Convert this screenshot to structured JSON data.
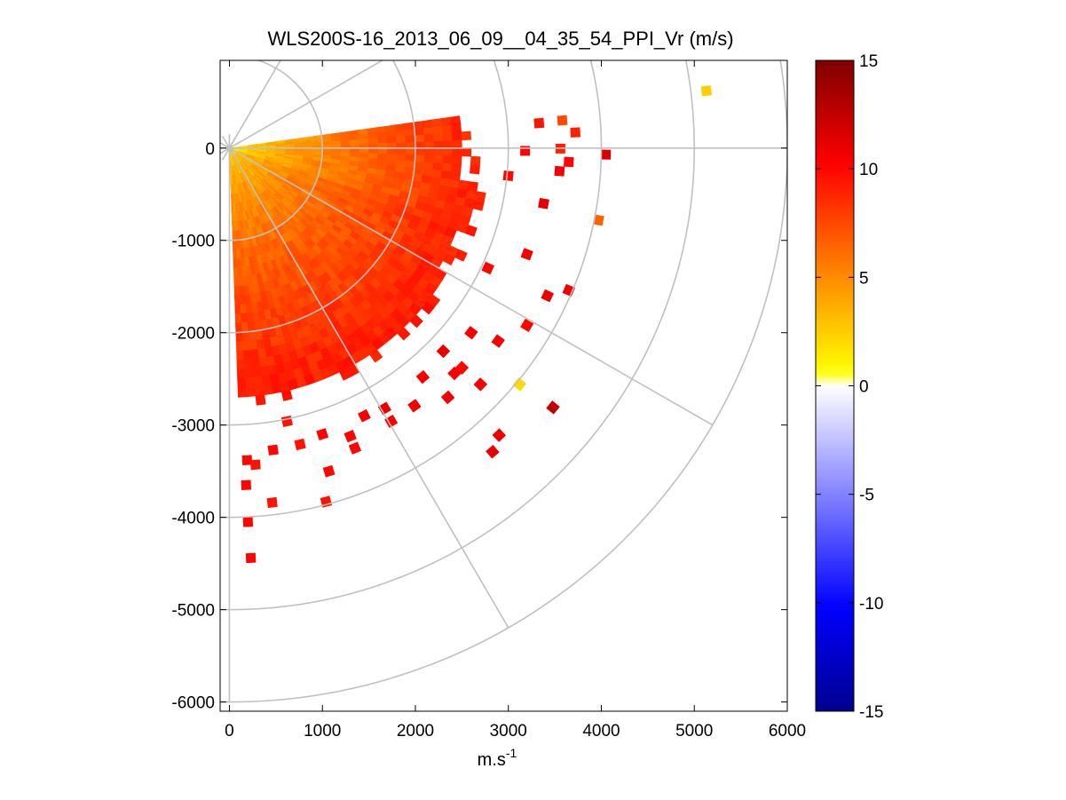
{
  "chart_data": {
    "type": "heatmap",
    "subtype": "polar-ppi-scan",
    "title": "WLS200S-16_2013_06_09__04_35_54_PPI_Vr (m/s)",
    "xlabel_base": "m.s",
    "xlabel_exponent": "-1",
    "ylabel": "",
    "xlim": [
      -100,
      6000
    ],
    "ylim": [
      -6100,
      950
    ],
    "x_ticks": [
      0,
      1000,
      2000,
      3000,
      4000,
      5000,
      6000
    ],
    "x_tick_labels": [
      "0",
      "1000",
      "2000",
      "3000",
      "4000",
      "5000",
      "6000"
    ],
    "y_ticks": [
      0,
      -1000,
      -2000,
      -3000,
      -4000,
      -5000,
      -6000
    ],
    "y_tick_labels": [
      "0",
      "-1000",
      "-2000",
      "-3000",
      "-4000",
      "-5000",
      "-6000"
    ],
    "range_rings": [
      1000,
      2000,
      3000,
      4000,
      5000,
      6000
    ],
    "radial_lines_deg": [
      0,
      -30,
      -60,
      -90,
      30,
      60
    ],
    "colorbar": {
      "range": [
        -15,
        15
      ],
      "ticks": [
        15,
        10,
        5,
        0,
        -5,
        -10,
        -15
      ],
      "tick_labels": [
        "15",
        "10",
        "5",
        "0",
        "-5",
        "-10",
        "-15"
      ],
      "colors": [
        "#00008f",
        "#0000ff",
        "#8080ff",
        "#ffffff",
        "#ffff00",
        "#ff8000",
        "#ff0000",
        "#800000"
      ]
    },
    "scan": {
      "azimuth_start_deg": -88,
      "azimuth_end_deg": 8,
      "range_gate_m": 100,
      "max_range_m": 2900,
      "near_value": 1.5,
      "far_value": 9.5
    },
    "scatter_points": [
      {
        "x": 5130,
        "y": 620,
        "v": 2.5
      },
      {
        "x": 4050,
        "y": -70,
        "v": 11.5
      },
      {
        "x": 3970,
        "y": -780,
        "v": 6.5
      },
      {
        "x": 3420,
        "y": -1600,
        "v": 11.0
      },
      {
        "x": 3650,
        "y": -1540,
        "v": 10.5
      },
      {
        "x": 3200,
        "y": -1920,
        "v": 10.0
      },
      {
        "x": 2890,
        "y": -2090,
        "v": 10.5
      },
      {
        "x": 3120,
        "y": -2560,
        "v": 2.0
      },
      {
        "x": 3480,
        "y": -2810,
        "v": 12.5
      },
      {
        "x": 2900,
        "y": -3110,
        "v": 11.0
      },
      {
        "x": 2830,
        "y": -3290,
        "v": 11.0
      },
      {
        "x": 2600,
        "y": -2000,
        "v": 10.5
      },
      {
        "x": 2420,
        "y": -2440,
        "v": 10.5
      },
      {
        "x": 2700,
        "y": -2560,
        "v": 10.5
      },
      {
        "x": 2350,
        "y": -2700,
        "v": 10.5
      },
      {
        "x": 1990,
        "y": -2790,
        "v": 10.5
      },
      {
        "x": 1740,
        "y": -2960,
        "v": 10.5
      },
      {
        "x": 1450,
        "y": -2900,
        "v": 10.5
      },
      {
        "x": 1300,
        "y": -3120,
        "v": 10.0
      },
      {
        "x": 1000,
        "y": -3100,
        "v": 10.0
      },
      {
        "x": 760,
        "y": -3210,
        "v": 9.5
      },
      {
        "x": 470,
        "y": -3270,
        "v": 10.0
      },
      {
        "x": 190,
        "y": -3380,
        "v": 10.0
      },
      {
        "x": 280,
        "y": -3430,
        "v": 9.5
      },
      {
        "x": 1070,
        "y": -3500,
        "v": 10.0
      },
      {
        "x": 180,
        "y": -3650,
        "v": 10.0
      },
      {
        "x": 1040,
        "y": -3830,
        "v": 9.5
      },
      {
        "x": 460,
        "y": -3840,
        "v": 9.5
      },
      {
        "x": 200,
        "y": -4050,
        "v": 10.0
      },
      {
        "x": 230,
        "y": -4440,
        "v": 10.0
      },
      {
        "x": 620,
        "y": -2960,
        "v": 9.5
      },
      {
        "x": 1350,
        "y": -3250,
        "v": 10.0
      },
      {
        "x": 3000,
        "y": -300,
        "v": 10.0
      },
      {
        "x": 3180,
        "y": -30,
        "v": 10.0
      },
      {
        "x": 3550,
        "y": -250,
        "v": 10.5
      },
      {
        "x": 3380,
        "y": -600,
        "v": 11.0
      },
      {
        "x": 3200,
        "y": -1150,
        "v": 10.5
      },
      {
        "x": 3560,
        "y": -6,
        "v": 9.0
      },
      {
        "x": 3650,
        "y": -150,
        "v": 10.0
      },
      {
        "x": 3330,
        "y": 270,
        "v": 9.5
      },
      {
        "x": 3580,
        "y": 300,
        "v": 7.5
      },
      {
        "x": 3720,
        "y": 170,
        "v": 9.0
      },
      {
        "x": 2780,
        "y": -1300,
        "v": 10.0
      },
      {
        "x": 2300,
        "y": -2200,
        "v": 11.0
      },
      {
        "x": 2080,
        "y": -2480,
        "v": 10.5
      },
      {
        "x": 1670,
        "y": -2820,
        "v": 11.0
      },
      {
        "x": 2500,
        "y": -2380,
        "v": 10.0
      }
    ]
  }
}
